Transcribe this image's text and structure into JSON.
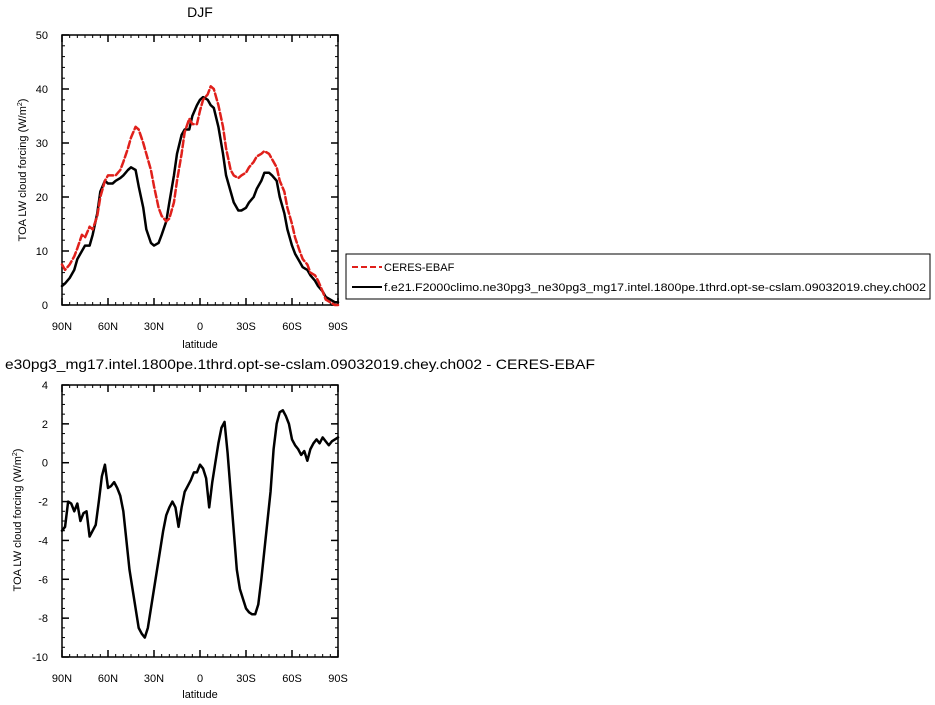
{
  "chart_data": [
    {
      "type": "line",
      "title": "DJF",
      "xlabel": "latitude",
      "ylabel": "TOA LW cloud forcing (W/m²)",
      "ylabel_main": "TOA LW cloud forcing (W/m",
      "ylabel_sup": "2",
      "ylabel_end": ")",
      "xlim": [
        90,
        -90
      ],
      "ylim": [
        0,
        50
      ],
      "x_ticks": [
        90,
        60,
        30,
        0,
        -30,
        -60,
        -90
      ],
      "x_tick_labels": [
        "90N",
        "60N",
        "30N",
        "0",
        "30S",
        "60S",
        "90S"
      ],
      "y_ticks": [
        0,
        10,
        20,
        30,
        40,
        50
      ],
      "y_tick_labels": [
        "0",
        "10",
        "20",
        "30",
        "40",
        "50"
      ],
      "legend": [
        {
          "name": "CERES-EBAF",
          "color": "#e0201b",
          "dash": true
        },
        {
          "name": "f.e21.F2000climo.ne30pg3_ne30pg3_mg17.intel.1800pe.1thrd.opt-se-cslam.09032019.chey.ch002",
          "color": "#000000",
          "dash": false
        }
      ],
      "legend_placement": "right",
      "series": [
        {
          "name": "CERES-EBAF",
          "color": "#e0201b",
          "dash": true,
          "x": [
            90,
            88,
            85,
            82,
            80,
            77,
            75,
            72,
            70,
            67,
            65,
            62,
            60,
            57,
            55,
            52,
            50,
            47,
            45,
            42,
            40,
            37,
            35,
            32,
            30,
            27,
            25,
            22,
            20,
            17,
            15,
            12,
            10,
            7,
            5,
            2,
            0,
            -2,
            -5,
            -7,
            -9,
            -12,
            -15,
            -17,
            -20,
            -22,
            -25,
            -27,
            -30,
            -32,
            -35,
            -37,
            -40,
            -42,
            -45,
            -47,
            -50,
            -52,
            -55,
            -57,
            -60,
            -62,
            -65,
            -67,
            -70,
            -72,
            -75,
            -77,
            -80,
            -82,
            -85,
            -88,
            -90
          ],
          "values": [
            7.5,
            6.5,
            7.5,
            9,
            10.5,
            13,
            12.5,
            14.5,
            14,
            16.5,
            20,
            23,
            24,
            24,
            24,
            25,
            26.5,
            29,
            31,
            33,
            32.5,
            30,
            28,
            25,
            22,
            18,
            16.5,
            15.5,
            16,
            19,
            23,
            28,
            32,
            34.5,
            33.5,
            33.5,
            36,
            38,
            39,
            40.5,
            40,
            37,
            33,
            29,
            25,
            24,
            23.5,
            24,
            24.5,
            25.5,
            26.5,
            27.5,
            28,
            28.5,
            28,
            27,
            25.5,
            23,
            21,
            18,
            15,
            12.5,
            10,
            8.5,
            7.5,
            6,
            5.5,
            4.5,
            2.5,
            1,
            0.5,
            0,
            0
          ]
        },
        {
          "name": "f.e21.F2000climo.ne30pg3_ne30pg3_mg17.intel.1800pe.1thrd.opt-se-cslam.09032019.chey.ch002",
          "color": "#000000",
          "dash": false,
          "x": [
            90,
            88,
            85,
            82,
            80,
            77,
            75,
            72,
            70,
            67,
            65,
            62,
            60,
            57,
            55,
            52,
            50,
            47,
            45,
            42,
            40,
            37,
            35,
            32,
            30,
            27,
            25,
            22,
            20,
            17,
            15,
            12,
            10,
            7,
            5,
            2,
            0,
            -2,
            -5,
            -7,
            -9,
            -12,
            -15,
            -17,
            -20,
            -22,
            -25,
            -27,
            -30,
            -32,
            -35,
            -37,
            -40,
            -42,
            -45,
            -47,
            -50,
            -52,
            -55,
            -57,
            -60,
            -62,
            -65,
            -67,
            -70,
            -72,
            -75,
            -77,
            -80,
            -82,
            -85,
            -88,
            -90
          ],
          "values": [
            3.5,
            4,
            5,
            6.5,
            8.5,
            10,
            11,
            11,
            13,
            17,
            21,
            23,
            22.5,
            22.5,
            23,
            23.5,
            24,
            25,
            25.5,
            25,
            22,
            18,
            14,
            11.5,
            11,
            11.5,
            13,
            15.5,
            19,
            24,
            28,
            31.5,
            32.5,
            32.5,
            35,
            37,
            38,
            38.5,
            38,
            37,
            36.5,
            33,
            28,
            24,
            21,
            19,
            17.5,
            17.5,
            18,
            19,
            20,
            21.5,
            23,
            24.5,
            24.5,
            24,
            23,
            20,
            17,
            14,
            11,
            9.5,
            8,
            7,
            6.5,
            5.5,
            4.5,
            3.5,
            2.5,
            1.5,
            1,
            0.5,
            0.5
          ]
        }
      ]
    },
    {
      "type": "line",
      "title": "e30pg3_mg17.intel.1800pe.1thrd.opt-se-cslam.09032019.chey.ch002 - CERES-EBAF",
      "xlabel": "latitude",
      "ylabel": "TOA LW cloud forcing (W/m²)",
      "ylabel_main": "TOA LW cloud forcing (W/m",
      "ylabel_sup": "2",
      "ylabel_end": ")",
      "xlim": [
        90,
        -90
      ],
      "ylim": [
        -10,
        4
      ],
      "x_ticks": [
        90,
        60,
        30,
        0,
        -30,
        -60,
        -90
      ],
      "x_tick_labels": [
        "90N",
        "60N",
        "30N",
        "0",
        "30S",
        "60S",
        "90S"
      ],
      "y_ticks": [
        4,
        2,
        0,
        -2,
        -4,
        -6,
        -8,
        -10
      ],
      "y_tick_labels": [
        "4",
        "2",
        "0",
        "-2",
        "-4",
        "-6",
        "-8",
        "-10"
      ],
      "series": [
        {
          "name": "",
          "color": "#000000",
          "dash": false,
          "x": [
            90,
            88,
            86,
            84,
            82,
            80,
            78,
            76,
            74,
            72,
            70,
            68,
            66,
            64,
            62,
            60,
            58,
            56,
            54,
            52,
            50,
            48,
            46,
            44,
            42,
            40,
            38,
            36,
            34,
            32,
            30,
            28,
            26,
            24,
            22,
            20,
            18,
            16,
            14,
            12,
            10,
            8,
            6,
            4,
            2,
            0,
            -2,
            -4,
            -6,
            -8,
            -10,
            -12,
            -14,
            -16,
            -18,
            -20,
            -22,
            -24,
            -26,
            -28,
            -30,
            -32,
            -34,
            -36,
            -38,
            -40,
            -42,
            -44,
            -46,
            -48,
            -50,
            -52,
            -54,
            -56,
            -58,
            -60,
            -62,
            -64,
            -66,
            -68,
            -70,
            -72,
            -74,
            -76,
            -78,
            -80,
            -82,
            -84,
            -86,
            -88,
            -90
          ],
          "values": [
            -3.5,
            -3.3,
            -2,
            -2.1,
            -2.5,
            -2.1,
            -3,
            -2.6,
            -2.5,
            -3.8,
            -3.5,
            -3.2,
            -2,
            -0.7,
            -0.1,
            -1.3,
            -1.2,
            -1,
            -1.3,
            -1.7,
            -2.5,
            -4,
            -5.5,
            -6.5,
            -7.5,
            -8.5,
            -8.8,
            -9,
            -8.5,
            -7.5,
            -6.5,
            -5.5,
            -4.5,
            -3.5,
            -2.7,
            -2.3,
            -2,
            -2.3,
            -3.3,
            -2.3,
            -1.5,
            -1.2,
            -0.9,
            -0.5,
            -0.5,
            -0.1,
            -0.3,
            -0.8,
            -2.3,
            -1,
            0,
            1,
            1.8,
            2.1,
            0.5,
            -1.5,
            -3.5,
            -5.5,
            -6.5,
            -7,
            -7.5,
            -7.7,
            -7.8,
            -7.8,
            -7.3,
            -6,
            -4.5,
            -3,
            -1.5,
            0.7,
            2,
            2.6,
            2.7,
            2.4,
            2,
            1.2,
            0.9,
            0.7,
            0.4,
            0.6,
            0.1,
            0.7,
            1,
            1.2,
            1,
            1.3,
            1.1,
            0.9,
            1.1,
            1.2,
            1.3
          ]
        }
      ]
    }
  ]
}
